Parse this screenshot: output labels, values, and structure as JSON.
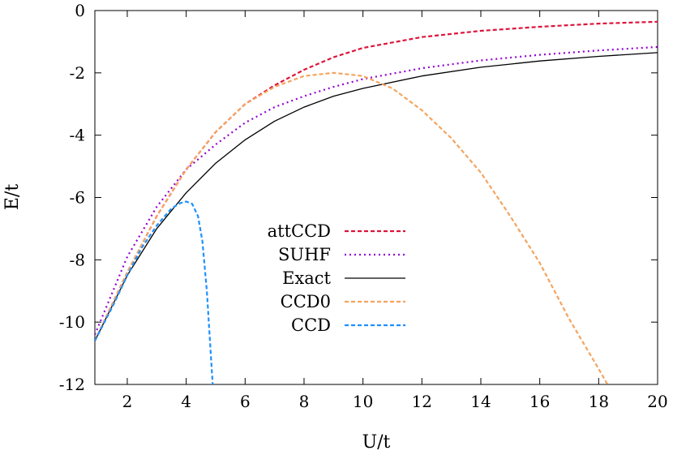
{
  "chart_data": {
    "type": "line",
    "xlabel": "U/t",
    "ylabel": "E/t",
    "xlim": [
      0.9,
      20
    ],
    "ylim": [
      -12,
      0
    ],
    "x_ticks": [
      2,
      4,
      6,
      8,
      10,
      12,
      14,
      16,
      18,
      20
    ],
    "y_ticks": [
      0,
      -2,
      -4,
      -6,
      -8,
      -10,
      -12
    ],
    "grid": false,
    "legend_position": "center-left",
    "series": [
      {
        "name": "attCCD",
        "color": "#dc143c",
        "dash": "dashed",
        "x": [
          0.9,
          2,
          3,
          4,
          5,
          6,
          7,
          8,
          9,
          10,
          12,
          14,
          16,
          18,
          20
        ],
        "y": [
          -10.6,
          -8.4,
          -6.6,
          -5.1,
          -3.9,
          -3.0,
          -2.4,
          -1.9,
          -1.5,
          -1.2,
          -0.85,
          -0.65,
          -0.52,
          -0.42,
          -0.36
        ]
      },
      {
        "name": "SUHF",
        "color": "#9400d3",
        "dash": "dotted",
        "x": [
          0.9,
          2,
          3,
          4,
          5,
          6,
          7,
          8,
          9,
          10,
          12,
          14,
          16,
          18,
          20
        ],
        "y": [
          -10.4,
          -7.9,
          -6.3,
          -5.1,
          -4.3,
          -3.6,
          -3.1,
          -2.75,
          -2.45,
          -2.2,
          -1.85,
          -1.6,
          -1.42,
          -1.28,
          -1.17
        ]
      },
      {
        "name": "Exact",
        "color": "#000000",
        "dash": "solid",
        "x": [
          0.9,
          2,
          3,
          4,
          5,
          6,
          7,
          8,
          9,
          10,
          12,
          14,
          16,
          18,
          20
        ],
        "y": [
          -10.6,
          -8.5,
          -7.0,
          -5.85,
          -4.9,
          -4.15,
          -3.55,
          -3.1,
          -2.75,
          -2.5,
          -2.1,
          -1.82,
          -1.62,
          -1.47,
          -1.35
        ]
      },
      {
        "name": "CCD0",
        "color": "#f4a460",
        "dash": "dashed",
        "x": [
          0.9,
          2,
          3,
          4,
          5,
          6,
          7,
          8,
          9,
          10,
          11,
          12,
          13,
          14,
          15,
          16,
          17,
          18,
          18.3
        ],
        "y": [
          -10.6,
          -8.4,
          -6.6,
          -5.1,
          -3.9,
          -3.0,
          -2.45,
          -2.1,
          -2.0,
          -2.1,
          -2.5,
          -3.2,
          -4.1,
          -5.2,
          -6.6,
          -8.1,
          -9.9,
          -11.5,
          -12.0
        ]
      },
      {
        "name": "CCD",
        "color": "#1e90ff",
        "dash": "dashed",
        "x": [
          0.9,
          1.5,
          2.0,
          2.5,
          3.0,
          3.5,
          3.8,
          4.0,
          4.2,
          4.4,
          4.55,
          4.7,
          4.8,
          4.9
        ],
        "y": [
          -10.6,
          -9.5,
          -8.5,
          -7.6,
          -6.9,
          -6.35,
          -6.18,
          -6.13,
          -6.2,
          -6.6,
          -7.4,
          -9.0,
          -10.5,
          -12.0
        ]
      }
    ]
  }
}
